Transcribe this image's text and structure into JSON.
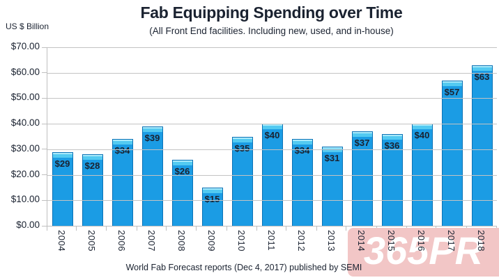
{
  "chart_data": {
    "type": "bar",
    "title": "Fab Equipping Spending over Time",
    "subtitle": "(All Front End facilities. Including new, used, and in-house)",
    "ylabel": "US $ Billion",
    "xlabel": "",
    "categories": [
      "2004",
      "2005",
      "2006",
      "2007",
      "2008",
      "2009",
      "2010",
      "2011",
      "2012",
      "2013",
      "2014",
      "2015",
      "2016",
      "2017",
      "2018"
    ],
    "values": [
      29,
      28,
      34,
      39,
      26,
      15,
      35,
      40,
      34,
      31,
      37,
      36,
      40,
      57,
      63
    ],
    "bar_labels": [
      "$29",
      "$28",
      "$34",
      "$39",
      "$26",
      "$15",
      "$35",
      "$40",
      "$34",
      "$31",
      "$37",
      "$36",
      "$40",
      "$57",
      "$63"
    ],
    "ylim": [
      0,
      70
    ],
    "ytick_step": 10,
    "ytick_labels_top_down": [
      "$70.00",
      "$60.00",
      "$50.00",
      "$40.00",
      "$30.00",
      "$20.00",
      "$10.00",
      "$0.00"
    ],
    "grid": true,
    "legend": "none",
    "colors": {
      "bar_fill": "#1B9CE4",
      "bar_top_band": "#53CAF1",
      "bar_top_highlight": "#A9EAFB",
      "bar_border": "#0B72B6",
      "gridline": "#C3C3C3",
      "axis_line": "#BFBFBF",
      "text": "#1A2230"
    }
  },
  "footer": {
    "caption": "World Fab Forecast reports (Dec 4, 2017) published by SEMI"
  },
  "watermark": {
    "text": "365PR",
    "bg_color": "#F2C6C6",
    "text_color": "#FFFFFF"
  }
}
